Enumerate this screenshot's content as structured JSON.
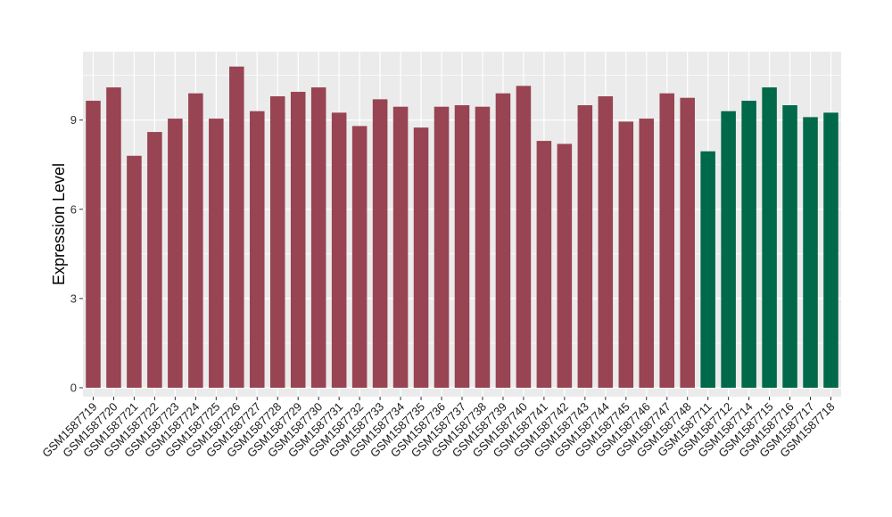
{
  "chart_data": {
    "type": "bar",
    "title": "",
    "xlabel": "",
    "ylabel": "Expression Level",
    "ylim": [
      -0.3,
      11.3
    ],
    "yticks": [
      0,
      3,
      6,
      9
    ],
    "grid": true,
    "legend": "none",
    "categories": [
      "GSM1587719",
      "GSM1587720",
      "GSM1587721",
      "GSM1587722",
      "GSM1587723",
      "GSM1587724",
      "GSM1587725",
      "GSM1587726",
      "GSM1587727",
      "GSM1587728",
      "GSM1587729",
      "GSM1587730",
      "GSM1587731",
      "GSM1587732",
      "GSM1587733",
      "GSM1587734",
      "GSM1587735",
      "GSM1587736",
      "GSM1587737",
      "GSM1587738",
      "GSM1587739",
      "GSM1587740",
      "GSM1587741",
      "GSM1587742",
      "GSM1587743",
      "GSM1587744",
      "GSM1587745",
      "GSM1587746",
      "GSM1587747",
      "GSM1587748",
      "GSM1587711",
      "GSM1587712",
      "GSM1587714",
      "GSM1587715",
      "GSM1587716",
      "GSM1587717",
      "GSM1587718"
    ],
    "values": [
      9.65,
      10.1,
      7.8,
      8.6,
      9.05,
      9.9,
      9.05,
      10.8,
      9.3,
      9.8,
      9.95,
      10.1,
      9.25,
      8.8,
      9.7,
      9.45,
      8.75,
      9.45,
      9.5,
      9.45,
      9.9,
      10.15,
      8.3,
      8.2,
      9.5,
      9.8,
      8.95,
      9.05,
      9.9,
      9.75,
      7.95,
      9.3,
      9.65,
      10.1,
      9.5,
      9.1,
      9.25
    ],
    "groups": [
      "red",
      "red",
      "red",
      "red",
      "red",
      "red",
      "red",
      "red",
      "red",
      "red",
      "red",
      "red",
      "red",
      "red",
      "red",
      "red",
      "red",
      "red",
      "red",
      "red",
      "red",
      "red",
      "red",
      "red",
      "red",
      "red",
      "red",
      "red",
      "red",
      "red",
      "green",
      "green",
      "green",
      "green",
      "green",
      "green",
      "green"
    ],
    "colors": {
      "red": "#984452",
      "green": "#00694a"
    },
    "panel_background": "#ebebeb",
    "grid_color": "#ffffff"
  }
}
